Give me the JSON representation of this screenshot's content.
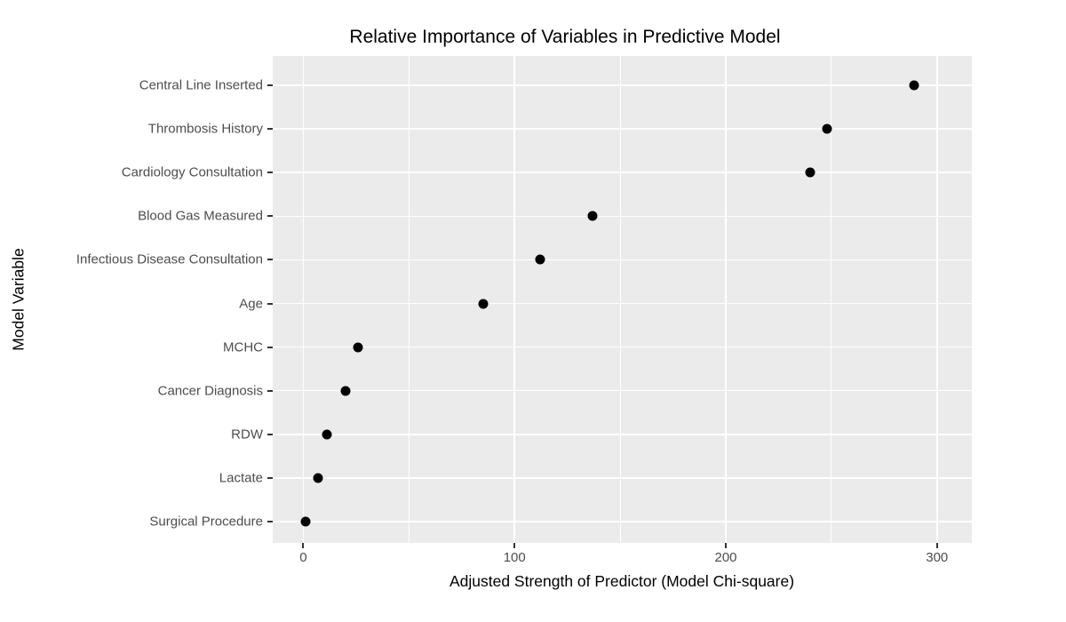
{
  "chart_data": {
    "type": "scatter",
    "subtype": "dot-plot",
    "orientation": "horizontal",
    "title": "Relative Importance of Variables in Predictive Model",
    "xlabel": "Adjusted Strength of Predictor (Model Chi-square)",
    "ylabel": "Model Variable",
    "categories": [
      "Central Line Inserted",
      "Thrombosis History",
      "Cardiology Consultation",
      "Blood Gas Measured",
      "Infectious Disease Consultation",
      "Age",
      "MCHC",
      "Cancer Diagnosis",
      "RDW",
      "Lactate",
      "Surgical Procedure"
    ],
    "values": [
      289,
      248,
      240,
      137,
      112,
      85,
      26,
      20,
      11,
      7,
      1
    ],
    "x_ticks": [
      0,
      100,
      200,
      300
    ],
    "x_tick_labels": [
      "0",
      "100",
      "200",
      "300"
    ],
    "x_minor_ticks": [
      50,
      150,
      250
    ],
    "xlim": [
      -14.5,
      316.5
    ],
    "grid": true,
    "legend_position": "none",
    "colors": {
      "panel_bg": "#EBEBEB",
      "grid": "#FFFFFF",
      "point": "#000000",
      "tick_text": "#4D4D4D",
      "title_text": "#000000",
      "tick_mark": "#333333"
    }
  }
}
